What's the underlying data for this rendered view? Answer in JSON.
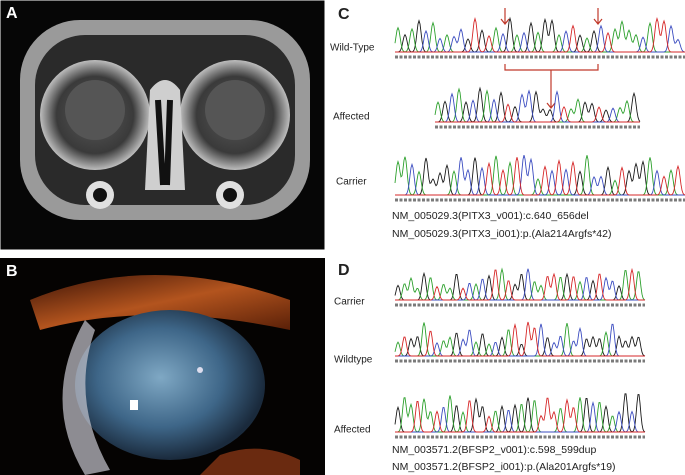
{
  "panels": {
    "A": {
      "label": "A"
    },
    "B": {
      "label": "B"
    },
    "C": {
      "label": "C",
      "tracks": [
        "Wild-Type",
        "Affected",
        "Carrier"
      ],
      "notes": [
        "NM_005029.3(PITX3_v001):c.640_656del",
        "NM_005029.3(PITX3_i001):p.(Ala214Argfs*42)"
      ]
    },
    "D": {
      "label": "D",
      "tracks": [
        "Carrier",
        "Wildtype",
        "Affected"
      ],
      "notes": [
        "NM_003571.2(BFSP2_v001):c.598_599dup",
        "NM_003571.2(BFSP2_i001):p.(Ala201Argfs*19)"
      ]
    }
  }
}
